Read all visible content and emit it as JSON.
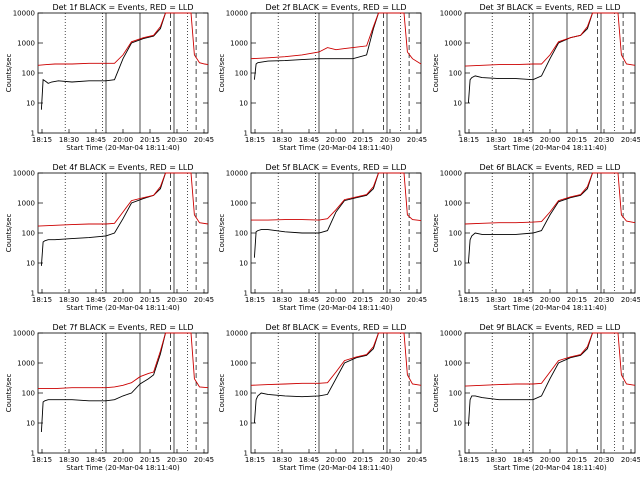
{
  "chart_data": [
    {
      "type": "line",
      "title": "Det 1f BLACK = Events, RED = LLD",
      "xlabel": "Start Time (20-Mar-04 18:11:40)",
      "ylabel": "Counts/sec",
      "yscale": "log",
      "ylim": [
        1,
        10000
      ],
      "xticks": [
        "18:15",
        "18:30",
        "18:45",
        "20:00",
        "20:15",
        "20:30",
        "20:45"
      ],
      "yticks": [
        "1",
        "10",
        "100",
        "1000",
        "10000"
      ],
      "series": [
        {
          "color": "#000000",
          "x": [
            0.02,
            0.03,
            0.04,
            0.05,
            0.06,
            0.08,
            0.12,
            0.2,
            0.3,
            0.4,
            0.45,
            0.5,
            0.55,
            0.62,
            0.68,
            0.72,
            0.75,
            0.78,
            0.8,
            0.82
          ],
          "y": [
            6,
            60,
            55,
            50,
            45,
            50,
            55,
            50,
            55,
            55,
            60,
            300,
            1000,
            1400,
            1700,
            3000,
            10000,
            10000,
            10000,
            10000
          ]
        },
        {
          "color": "#cc0000",
          "x": [
            0.0,
            0.05,
            0.1,
            0.2,
            0.3,
            0.4,
            0.45,
            0.5,
            0.55,
            0.62,
            0.68,
            0.72,
            0.75,
            0.78,
            0.9,
            0.92,
            0.95,
            0.98,
            1.0
          ],
          "y": [
            180,
            190,
            200,
            200,
            210,
            210,
            210,
            400,
            1100,
            1500,
            1800,
            3500,
            10000,
            10000,
            10000,
            400,
            220,
            200,
            190
          ]
        }
      ]
    },
    {
      "type": "line",
      "title": "Det 2f BLACK = Events, RED = LLD",
      "xlabel": "Start Time (20-Mar-04 18:11:40)",
      "ylabel": "Counts/sec",
      "yscale": "log",
      "ylim": [
        1,
        10000
      ],
      "xticks": [
        "18:15",
        "18:30",
        "18:45",
        "20:00",
        "20:15",
        "20:30",
        "20:45"
      ],
      "yticks": [
        "1",
        "10",
        "100",
        "1000",
        "10000"
      ],
      "series": [
        {
          "color": "#000000",
          "x": [
            0.02,
            0.03,
            0.04,
            0.1,
            0.2,
            0.3,
            0.4,
            0.5,
            0.6,
            0.68,
            0.72,
            0.75,
            0.78,
            0.8
          ],
          "y": [
            60,
            200,
            220,
            250,
            260,
            280,
            300,
            300,
            300,
            400,
            3000,
            10000,
            10000,
            10000
          ]
        },
        {
          "color": "#cc0000",
          "x": [
            0.0,
            0.1,
            0.2,
            0.3,
            0.4,
            0.45,
            0.5,
            0.55,
            0.6,
            0.68,
            0.72,
            0.75,
            0.8,
            0.9,
            0.92,
            0.95,
            1.0
          ],
          "y": [
            300,
            320,
            350,
            400,
            500,
            700,
            600,
            650,
            700,
            800,
            3500,
            10000,
            10000,
            10000,
            500,
            300,
            200
          ]
        }
      ]
    },
    {
      "type": "line",
      "title": "Det 3f BLACK = Events, RED = LLD",
      "xlabel": "Start Time (20-Mar-04 18:11:40)",
      "ylabel": "Counts/sec",
      "yscale": "log",
      "ylim": [
        1,
        10000
      ],
      "xticks": [
        "18:15",
        "18:30",
        "18:45",
        "20:00",
        "20:15",
        "20:30",
        "20:45"
      ],
      "yticks": [
        "1",
        "10",
        "100",
        "1000",
        "10000"
      ],
      "series": [
        {
          "color": "#000000",
          "x": [
            0.02,
            0.03,
            0.04,
            0.06,
            0.1,
            0.2,
            0.3,
            0.4,
            0.45,
            0.5,
            0.55,
            0.62,
            0.68,
            0.72,
            0.75,
            0.8
          ],
          "y": [
            10,
            60,
            70,
            80,
            70,
            65,
            65,
            60,
            80,
            300,
            1000,
            1500,
            1800,
            3000,
            10000,
            10000
          ]
        },
        {
          "color": "#cc0000",
          "x": [
            0.0,
            0.1,
            0.2,
            0.3,
            0.4,
            0.45,
            0.5,
            0.55,
            0.62,
            0.68,
            0.72,
            0.75,
            0.8,
            0.9,
            0.92,
            0.95,
            1.0
          ],
          "y": [
            170,
            180,
            190,
            190,
            200,
            200,
            400,
            1100,
            1500,
            1800,
            3500,
            10000,
            10000,
            10000,
            400,
            200,
            180
          ]
        }
      ]
    },
    {
      "type": "line",
      "title": "Det 4f BLACK = Events, RED = LLD",
      "xlabel": "Start Time (20-Mar-04 18:11:40)",
      "ylabel": "Counts/sec",
      "yscale": "log",
      "ylim": [
        1,
        10000
      ],
      "xticks": [
        "18:15",
        "18:30",
        "18:45",
        "20:00",
        "20:15",
        "20:30",
        "20:45"
      ],
      "yticks": [
        "1",
        "10",
        "100",
        "1000",
        "10000"
      ],
      "series": [
        {
          "color": "#000000",
          "x": [
            0.02,
            0.03,
            0.04,
            0.06,
            0.1,
            0.2,
            0.3,
            0.4,
            0.45,
            0.5,
            0.55,
            0.62,
            0.68,
            0.72,
            0.75,
            0.8
          ],
          "y": [
            8,
            50,
            55,
            60,
            60,
            65,
            70,
            80,
            100,
            300,
            1000,
            1400,
            1800,
            3000,
            10000,
            10000
          ]
        },
        {
          "color": "#cc0000",
          "x": [
            0.0,
            0.1,
            0.2,
            0.3,
            0.4,
            0.45,
            0.5,
            0.55,
            0.62,
            0.68,
            0.72,
            0.75,
            0.8,
            0.9,
            0.92,
            0.95,
            1.0
          ],
          "y": [
            170,
            180,
            190,
            200,
            200,
            210,
            500,
            1200,
            1500,
            1800,
            3500,
            10000,
            10000,
            10000,
            400,
            220,
            200
          ]
        }
      ]
    },
    {
      "type": "line",
      "title": "Det 5f BLACK = Events, RED = LLD",
      "xlabel": "Start Time (20-Mar-04 18:11:40)",
      "ylabel": "Counts/sec",
      "yscale": "log",
      "ylim": [
        1,
        10000
      ],
      "xticks": [
        "18:15",
        "18:30",
        "18:45",
        "20:00",
        "20:15",
        "20:30",
        "20:45"
      ],
      "yticks": [
        "1",
        "10",
        "100",
        "1000",
        "10000"
      ],
      "series": [
        {
          "color": "#000000",
          "x": [
            0.02,
            0.03,
            0.04,
            0.06,
            0.1,
            0.2,
            0.3,
            0.4,
            0.45,
            0.5,
            0.55,
            0.62,
            0.68,
            0.72,
            0.75,
            0.8
          ],
          "y": [
            15,
            110,
            120,
            130,
            130,
            110,
            100,
            100,
            120,
            500,
            1200,
            1500,
            1800,
            3000,
            10000,
            10000
          ]
        },
        {
          "color": "#cc0000",
          "x": [
            0.0,
            0.1,
            0.2,
            0.3,
            0.4,
            0.45,
            0.5,
            0.55,
            0.62,
            0.68,
            0.72,
            0.75,
            0.8,
            0.9,
            0.92,
            0.95,
            1.0
          ],
          "y": [
            270,
            270,
            280,
            280,
            270,
            300,
            600,
            1300,
            1600,
            1900,
            3500,
            10000,
            10000,
            10000,
            400,
            280,
            260
          ]
        }
      ]
    },
    {
      "type": "line",
      "title": "Det 6f BLACK = Events, RED = LLD",
      "xlabel": "Start Time (20-Mar-04 18:11:40)",
      "ylabel": "Counts/sec",
      "yscale": "log",
      "ylim": [
        1,
        10000
      ],
      "xticks": [
        "18:15",
        "18:30",
        "18:45",
        "20:00",
        "20:15",
        "20:30",
        "20:45"
      ],
      "yticks": [
        "1",
        "10",
        "100",
        "1000",
        "10000"
      ],
      "series": [
        {
          "color": "#000000",
          "x": [
            0.02,
            0.03,
            0.04,
            0.06,
            0.1,
            0.2,
            0.3,
            0.4,
            0.45,
            0.5,
            0.55,
            0.62,
            0.68,
            0.72,
            0.75,
            0.8
          ],
          "y": [
            10,
            60,
            80,
            100,
            90,
            90,
            90,
            100,
            120,
            400,
            1100,
            1500,
            1800,
            3000,
            10000,
            10000
          ]
        },
        {
          "color": "#cc0000",
          "x": [
            0.0,
            0.1,
            0.2,
            0.3,
            0.4,
            0.45,
            0.5,
            0.55,
            0.62,
            0.68,
            0.72,
            0.75,
            0.8,
            0.9,
            0.92,
            0.95,
            1.0
          ],
          "y": [
            200,
            210,
            220,
            220,
            230,
            240,
            500,
            1200,
            1600,
            1900,
            3500,
            10000,
            10000,
            10000,
            400,
            250,
            220
          ]
        }
      ]
    },
    {
      "type": "line",
      "title": "Det 7f BLACK = Events, RED = LLD",
      "xlabel": "Start Time (20-Mar-04 18:11:40)",
      "ylabel": "Counts/sec",
      "yscale": "log",
      "ylim": [
        1,
        10000
      ],
      "xticks": [
        "18:15",
        "18:30",
        "18:45",
        "20:00",
        "20:15",
        "20:30",
        "20:45"
      ],
      "yticks": [
        "1",
        "10",
        "100",
        "1000",
        "10000"
      ],
      "series": [
        {
          "color": "#000000",
          "x": [
            0.02,
            0.03,
            0.04,
            0.06,
            0.1,
            0.2,
            0.3,
            0.4,
            0.45,
            0.5,
            0.55,
            0.6,
            0.65,
            0.68,
            0.72,
            0.75,
            0.8
          ],
          "y": [
            5,
            50,
            55,
            60,
            60,
            60,
            55,
            55,
            60,
            80,
            100,
            200,
            300,
            400,
            2000,
            10000,
            10000
          ]
        },
        {
          "color": "#cc0000",
          "x": [
            0.0,
            0.1,
            0.2,
            0.3,
            0.4,
            0.45,
            0.5,
            0.55,
            0.6,
            0.65,
            0.68,
            0.72,
            0.75,
            0.8,
            0.9,
            0.92,
            0.95,
            1.0
          ],
          "y": [
            140,
            140,
            150,
            150,
            150,
            160,
            180,
            220,
            350,
            450,
            500,
            2500,
            10000,
            10000,
            10000,
            300,
            160,
            150
          ]
        }
      ]
    },
    {
      "type": "line",
      "title": "Det 8f BLACK = Events, RED = LLD",
      "xlabel": "Start Time (20-Mar-04 18:11:40)",
      "ylabel": "Counts/sec",
      "yscale": "log",
      "ylim": [
        1,
        10000
      ],
      "xticks": [
        "18:15",
        "18:30",
        "18:45",
        "20:00",
        "20:15",
        "20:30",
        "20:45"
      ],
      "yticks": [
        "1",
        "10",
        "100",
        "1000",
        "10000"
      ],
      "series": [
        {
          "color": "#000000",
          "x": [
            0.02,
            0.03,
            0.04,
            0.06,
            0.1,
            0.2,
            0.3,
            0.4,
            0.45,
            0.5,
            0.55,
            0.62,
            0.68,
            0.72,
            0.75,
            0.8
          ],
          "y": [
            10,
            60,
            80,
            100,
            90,
            80,
            75,
            80,
            90,
            300,
            1000,
            1500,
            1800,
            3000,
            10000,
            10000
          ]
        },
        {
          "color": "#cc0000",
          "x": [
            0.0,
            0.1,
            0.2,
            0.3,
            0.4,
            0.45,
            0.5,
            0.55,
            0.62,
            0.68,
            0.72,
            0.75,
            0.8,
            0.9,
            0.92,
            0.95,
            1.0
          ],
          "y": [
            180,
            190,
            200,
            210,
            210,
            220,
            500,
            1200,
            1600,
            1900,
            3500,
            10000,
            10000,
            10000,
            400,
            200,
            180
          ]
        }
      ]
    },
    {
      "type": "line",
      "title": "Det 9f BLACK = Events, RED = LLD",
      "xlabel": "Start Time (20-Mar-04 18:11:40)",
      "ylabel": "Counts/sec",
      "yscale": "log",
      "ylim": [
        1,
        10000
      ],
      "xticks": [
        "18:15",
        "18:30",
        "18:45",
        "20:00",
        "20:15",
        "20:30",
        "20:45"
      ],
      "yticks": [
        "1",
        "10",
        "100",
        "1000",
        "10000"
      ],
      "series": [
        {
          "color": "#000000",
          "x": [
            0.02,
            0.03,
            0.04,
            0.06,
            0.1,
            0.2,
            0.3,
            0.4,
            0.45,
            0.5,
            0.55,
            0.62,
            0.68,
            0.72,
            0.75,
            0.8
          ],
          "y": [
            8,
            60,
            80,
            80,
            70,
            60,
            60,
            60,
            80,
            300,
            1000,
            1500,
            1800,
            3000,
            10000,
            10000
          ]
        },
        {
          "color": "#cc0000",
          "x": [
            0.0,
            0.1,
            0.2,
            0.3,
            0.4,
            0.45,
            0.5,
            0.55,
            0.62,
            0.68,
            0.72,
            0.75,
            0.8,
            0.9,
            0.92,
            0.95,
            1.0
          ],
          "y": [
            170,
            180,
            190,
            200,
            200,
            210,
            500,
            1200,
            1600,
            1900,
            3500,
            10000,
            10000,
            10000,
            400,
            200,
            180
          ]
        }
      ]
    }
  ]
}
